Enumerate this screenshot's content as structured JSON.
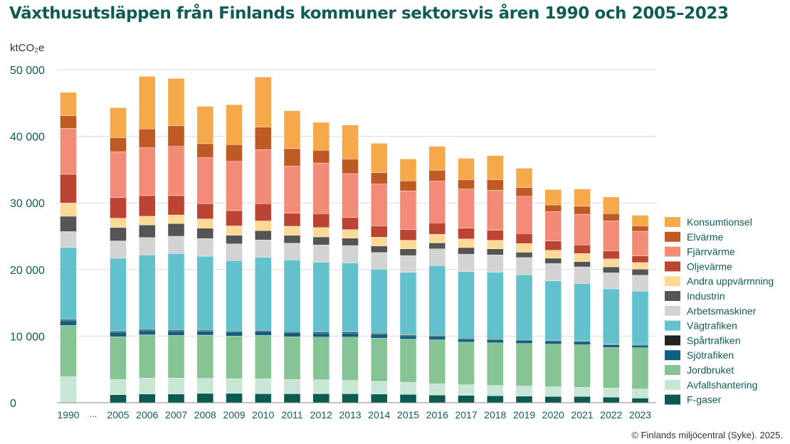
{
  "chart_data": {
    "type": "bar",
    "stacked": true,
    "title": "Växthusutsläppen från Finlands kommuner sektorsvis åren 1990 och 2005–2023",
    "ylabel": "ktCO₂e",
    "ylim": [
      0,
      50000
    ],
    "yticks": [
      0,
      10000,
      20000,
      30000,
      40000,
      50000
    ],
    "ytick_labels": [
      "0",
      "10 000",
      "20 000",
      "30 000",
      "40 000",
      "50 000"
    ],
    "grid": true,
    "legend_position": "right",
    "axis_gap_label": "...",
    "categories": [
      "1990",
      "2005",
      "2006",
      "2007",
      "2008",
      "2009",
      "2010",
      "2011",
      "2012",
      "2013",
      "2014",
      "2015",
      "2016",
      "2017",
      "2018",
      "2019",
      "2020",
      "2021",
      "2022",
      "2023"
    ],
    "series": [
      {
        "name": "F-gaser",
        "color": "#0b5b52",
        "values": [
          100,
          1200,
          1300,
          1300,
          1400,
          1400,
          1350,
          1350,
          1350,
          1350,
          1300,
          1250,
          1150,
          1100,
          1050,
          1000,
          950,
          950,
          850,
          700
        ]
      },
      {
        "name": "Avfallshantering",
        "color": "#c8e6d6",
        "values": [
          3800,
          2300,
          2400,
          2400,
          2250,
          2200,
          2250,
          2150,
          2100,
          2000,
          1900,
          1800,
          1700,
          1600,
          1550,
          1500,
          1450,
          1350,
          1350,
          1350
        ]
      },
      {
        "name": "Jordbruket",
        "color": "#86c496",
        "values": [
          7700,
          6400,
          6500,
          6400,
          6500,
          6400,
          6500,
          6400,
          6400,
          6500,
          6500,
          6500,
          6600,
          6400,
          6400,
          6400,
          6400,
          6400,
          6100,
          6200
        ]
      },
      {
        "name": "Sjötrafiken",
        "color": "#0f5f80",
        "values": [
          700,
          600,
          600,
          600,
          600,
          600,
          600,
          600,
          600,
          600,
          600,
          500,
          500,
          500,
          500,
          500,
          500,
          500,
          400,
          400
        ]
      },
      {
        "name": "Spårtrafiken",
        "color": "#232323",
        "values": [
          200,
          200,
          200,
          200,
          150,
          150,
          150,
          150,
          150,
          150,
          150,
          150,
          150,
          100,
          100,
          100,
          100,
          100,
          100,
          100
        ]
      },
      {
        "name": "Vägtrafiken",
        "color": "#62c1cc",
        "values": [
          10800,
          11000,
          11200,
          11500,
          11100,
          10600,
          11000,
          10800,
          10500,
          10400,
          9600,
          9400,
          10500,
          10000,
          10000,
          9700,
          8900,
          8600,
          8300,
          8000
        ]
      },
      {
        "name": "Arbetsmaskiner",
        "color": "#d3d3d3",
        "values": [
          2400,
          2600,
          2600,
          2600,
          2650,
          2500,
          2600,
          2500,
          2600,
          2600,
          2500,
          2500,
          2500,
          2600,
          2600,
          2600,
          2600,
          2500,
          2400,
          2400
        ]
      },
      {
        "name": "Industrin",
        "color": "#555555",
        "values": [
          2300,
          2000,
          1900,
          1900,
          1550,
          1300,
          1400,
          1200,
          1200,
          1100,
          1000,
          1000,
          900,
          1000,
          900,
          800,
          800,
          800,
          900,
          900
        ]
      },
      {
        "name": "Andra uppvärmning",
        "color": "#fdd996",
        "values": [
          2000,
          1400,
          1300,
          1300,
          1400,
          1400,
          1450,
          1350,
          1400,
          1300,
          1300,
          1300,
          1300,
          1300,
          1300,
          1300,
          1200,
          1200,
          1200,
          1000
        ]
      },
      {
        "name": "Oljevärme",
        "color": "#bb4532",
        "values": [
          4300,
          3100,
          3100,
          2900,
          2300,
          2300,
          2600,
          1950,
          2100,
          1800,
          1700,
          1600,
          1700,
          1600,
          1500,
          1500,
          1400,
          1300,
          1200,
          1000
        ]
      },
      {
        "name": "Fjärrvärme",
        "color": "#f28c78",
        "values": [
          6900,
          6900,
          7200,
          7400,
          6900,
          7400,
          8100,
          7100,
          7600,
          6600,
          6300,
          5800,
          6300,
          5900,
          6000,
          5600,
          4400,
          4600,
          4500,
          3700
        ]
      },
      {
        "name": "Elvärme",
        "color": "#bf5a24",
        "values": [
          1900,
          2100,
          2800,
          3100,
          2100,
          2500,
          3400,
          2600,
          1900,
          2200,
          1700,
          1500,
          1600,
          1400,
          1600,
          1300,
          1000,
          1200,
          1100,
          800
        ]
      },
      {
        "name": "Konsumtionsel",
        "color": "#f5a94b",
        "values": [
          3500,
          4500,
          7900,
          7100,
          5600,
          6000,
          7500,
          5700,
          4200,
          5100,
          4400,
          3300,
          3600,
          3200,
          3600,
          2900,
          2300,
          2600,
          2500,
          1600
        ]
      }
    ]
  },
  "credit": "© Finlands miljöcentral (Syke). 2025."
}
